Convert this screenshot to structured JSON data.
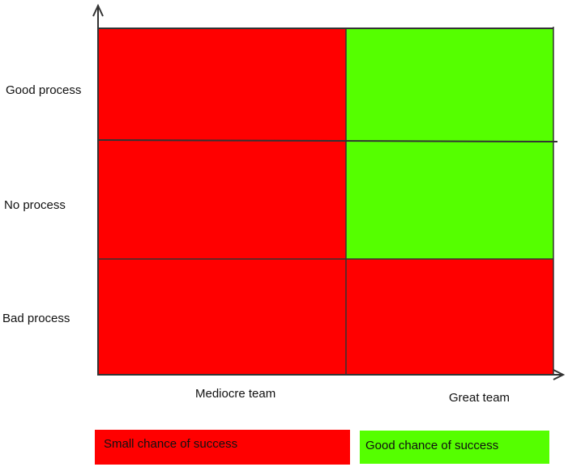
{
  "matrix": {
    "rows": [
      "Good process",
      "No process",
      "Bad process"
    ],
    "columns": [
      "Mediocre team",
      "Great team"
    ],
    "cells": [
      [
        "small",
        "good"
      ],
      [
        "small",
        "good"
      ],
      [
        "small",
        "small"
      ]
    ]
  },
  "legend": {
    "small": {
      "label": "Small chance of success",
      "color": "#ff0000"
    },
    "good": {
      "label": "Good chance of success",
      "color": "#55ff00"
    }
  },
  "colors": {
    "axis": "#000000",
    "grid": "#333333"
  }
}
